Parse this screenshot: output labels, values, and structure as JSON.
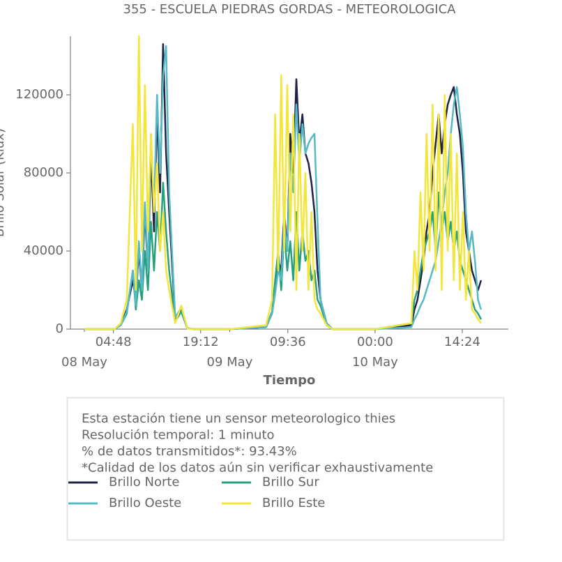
{
  "chart_data": {
    "type": "line",
    "title": "355 - ESCUELA PIEDRAS GORDAS - METEOROLOGICA",
    "x_label": "Tiempo",
    "y_label": "Brillo Solar (Klux)",
    "x": [
      "08 May 00:00",
      "08 May 05:00",
      "08 May 06:00",
      "08 May 07:00",
      "08 May 08:00",
      "08 May 08:30",
      "08 May 09:00",
      "08 May 09:30",
      "08 May 10:00",
      "08 May 10:30",
      "08 May 11:00",
      "08 May 11:30",
      "08 May 12:00",
      "08 May 12:30",
      "08 May 13:00",
      "08 May 13:30",
      "08 May 14:00",
      "08 May 15:00",
      "08 May 16:00",
      "08 May 17:00",
      "08 May 18:00",
      "09 May 00:00",
      "09 May 06:00",
      "09 May 07:00",
      "09 May 07:30",
      "09 May 08:00",
      "09 May 08:30",
      "09 May 09:00",
      "09 May 09:30",
      "09 May 10:00",
      "09 May 10:30",
      "09 May 11:00",
      "09 May 11:30",
      "09 May 12:00",
      "09 May 12:30",
      "09 May 13:00",
      "09 May 13:30",
      "09 May 14:00",
      "09 May 14:30",
      "09 May 15:00",
      "09 May 16:00",
      "09 May 17:00",
      "10 May 00:00",
      "10 May 06:00",
      "10 May 06:30",
      "10 May 07:00",
      "10 May 07:30",
      "10 May 08:00",
      "10 May 08:30",
      "10 May 09:00",
      "10 May 09:30",
      "10 May 10:00",
      "10 May 10:30",
      "10 May 11:00",
      "10 May 11:30",
      "10 May 12:00",
      "10 May 12:30",
      "10 May 13:00",
      "10 May 13:30",
      "10 May 14:00",
      "10 May 14:30",
      "10 May 15:00",
      "10 May 15:30",
      "10 May 16:00",
      "10 May 16:30",
      "10 May 17:00",
      "10 May 17:30"
    ],
    "series": [
      {
        "name": "Brillo Norte",
        "color": "#1f2147",
        "values": [
          0,
          0,
          2000,
          10000,
          25000,
          15000,
          40000,
          20000,
          60000,
          30000,
          90000,
          50000,
          110000,
          70000,
          146000,
          90000,
          60000,
          5000,
          10000,
          500,
          0,
          0,
          1000,
          8000,
          20000,
          35000,
          30000,
          60000,
          40000,
          100000,
          80000,
          128000,
          95000,
          110000,
          90000,
          85000,
          75000,
          60000,
          30000,
          15000,
          3000,
          0,
          0,
          2000,
          10000,
          15000,
          25000,
          35000,
          50000,
          60000,
          80000,
          95000,
          110000,
          90000,
          105000,
          115000,
          120000,
          124000,
          110000,
          100000,
          80000,
          50000,
          40000,
          30000,
          25000,
          20000,
          25000
        ]
      },
      {
        "name": "Brillo Sur",
        "color": "#27a07f",
        "values": [
          0,
          0,
          2000,
          8000,
          30000,
          10000,
          25000,
          15000,
          40000,
          20000,
          55000,
          30000,
          60000,
          40000,
          75000,
          50000,
          30000,
          4000,
          9000,
          400,
          0,
          0,
          1000,
          9000,
          25000,
          40000,
          20000,
          50000,
          30000,
          45000,
          25000,
          60000,
          30000,
          50000,
          35000,
          40000,
          25000,
          30000,
          15000,
          12000,
          2000,
          0,
          0,
          3000,
          15000,
          20000,
          30000,
          40000,
          45000,
          50000,
          60000,
          40000,
          70000,
          50000,
          60000,
          45000,
          55000,
          40000,
          50000,
          35000,
          30000,
          25000,
          20000,
          15000,
          10000,
          8000,
          5000
        ]
      },
      {
        "name": "Brillo Oeste",
        "color": "#56b9c4",
        "values": [
          0,
          0,
          2000,
          9000,
          30000,
          12000,
          45000,
          20000,
          65000,
          30000,
          100000,
          60000,
          120000,
          80000,
          130000,
          145000,
          70000,
          6000,
          11000,
          500,
          0,
          0,
          1000,
          8000,
          18000,
          30000,
          25000,
          55000,
          40000,
          90000,
          70000,
          115000,
          85000,
          105000,
          90000,
          95000,
          98000,
          100000,
          55000,
          15000,
          3000,
          0,
          0,
          1000,
          5000,
          8000,
          12000,
          15000,
          20000,
          25000,
          30000,
          35000,
          45000,
          55000,
          70000,
          80000,
          100000,
          115000,
          124000,
          110000,
          93000,
          60000,
          40000,
          50000,
          35000,
          15000,
          10000
        ]
      },
      {
        "name": "Brillo Este",
        "color": "#f3e53a",
        "values": [
          0,
          0,
          3000,
          15000,
          105000,
          20000,
          150000,
          40000,
          125000,
          50000,
          100000,
          60000,
          85000,
          40000,
          60000,
          30000,
          20000,
          3000,
          12000,
          300,
          0,
          0,
          2000,
          15000,
          110000,
          30000,
          130000,
          40000,
          125000,
          50000,
          110000,
          20000,
          100000,
          40000,
          80000,
          20000,
          60000,
          15000,
          10000,
          8000,
          2000,
          0,
          0,
          3000,
          40000,
          20000,
          70000,
          30000,
          100000,
          40000,
          115000,
          30000,
          110000,
          20000,
          120000,
          40000,
          100000,
          25000,
          90000,
          20000,
          60000,
          15000,
          40000,
          10000,
          8000,
          5000,
          3000
        ]
      }
    ],
    "xlim": [
      "07 May 21:42",
      "10 May 22:00"
    ],
    "xticks": [
      {
        "value": "08 May 04:48",
        "label": "04:48"
      },
      {
        "value": "08 May 19:12",
        "label": "19:12"
      },
      {
        "value": "09 May 09:36",
        "label": "09:36"
      },
      {
        "value": "10 May 00:00",
        "label": "00:00"
      },
      {
        "value": "10 May 14:24",
        "label": "14:24"
      }
    ],
    "xdays": [
      {
        "value": "08 May 00:00",
        "label": "08 May"
      },
      {
        "value": "09 May 00:00",
        "label": "09 May"
      },
      {
        "value": "10 May 00:00",
        "label": "10 May"
      }
    ],
    "ylim": [
      0,
      150000
    ],
    "yticks": [
      0,
      40000,
      80000,
      120000
    ],
    "notes": [
      "Esta estación tiene un sensor meteorologico thies",
      "Resolución temporal: 1 minuto",
      "% de datos transmitidos*: 93.43%",
      "*Calidad de los datos aún sin verificar exhaustivamente"
    ]
  }
}
